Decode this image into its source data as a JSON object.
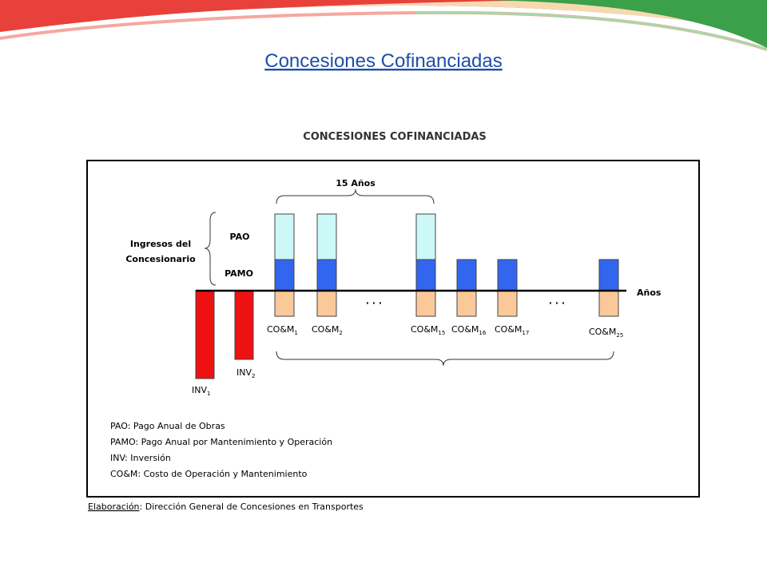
{
  "slide_title": "Concesiones Cofinanciadas",
  "diagram": {
    "title": "CONCESIONES COFINANCIADAS",
    "period_label": "15 Años",
    "income_label": [
      "Ingresos del",
      "Concesionario"
    ],
    "pao": "PAO",
    "pamo": "PAMO",
    "axis_label": "Años",
    "ellipsis": [
      "· · ·",
      "· · ·"
    ],
    "com_labels": [
      {
        "base": "CO&M",
        "sub": "1"
      },
      {
        "base": "CO&M",
        "sub": "2"
      },
      {
        "base": "CO&M",
        "sub": "15"
      },
      {
        "base": "CO&M",
        "sub": "16"
      },
      {
        "base": "CO&M",
        "sub": "17"
      },
      {
        "base": "CO&M",
        "sub": "25"
      }
    ],
    "inv_labels": [
      {
        "base": "INV",
        "sub": "1"
      },
      {
        "base": "INV",
        "sub": "2"
      }
    ],
    "legend": [
      "PAO: Pago Anual de Obras",
      "PAMO: Pago Anual por Mantenimiento y Operación",
      "INV: Inversión",
      "CO&M: Costo de Operación y Mantenimiento"
    ],
    "source": {
      "label": "Elaboración",
      "text": ": Dirección General de Concesiones en Transportes"
    }
  }
}
